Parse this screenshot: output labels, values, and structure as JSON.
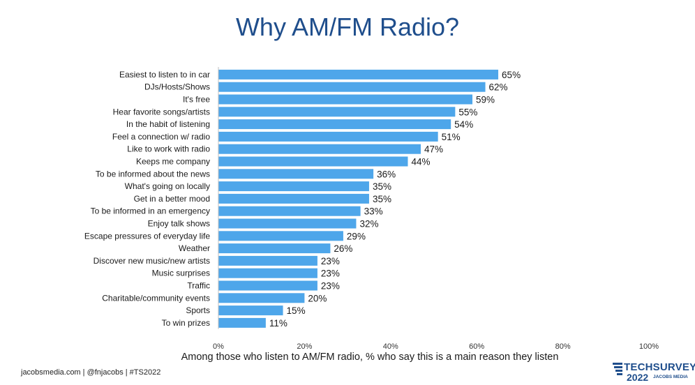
{
  "title": "Why AM/FM Radio?",
  "subtitle": "Among those who listen to AM/FM radio, % who say this is a main reason they listen",
  "footer": "jacobsmedia.com   |   @fnjacobs   |   #TS2022",
  "brand": {
    "main": "TECHSURVEY",
    "year": "2022",
    "sub": "JACOBS MEDIA"
  },
  "colors": {
    "bar": "#4ea6ea",
    "title": "#1f4e8c",
    "axis": "#bfbfbf"
  },
  "chart_data": {
    "type": "bar",
    "orientation": "horizontal",
    "categories": [
      "Easiest to listen to in car",
      "DJs/Hosts/Shows",
      "It's free",
      "Hear favorite songs/artists",
      "In the habit of listening",
      "Feel a connection w/ radio",
      "Like to work with radio",
      "Keeps me company",
      "To be informed about the news",
      "What's going on locally",
      "Get in a better mood",
      "To be informed in an emergency",
      "Enjoy talk shows",
      "Escape pressures of everyday life",
      "Weather",
      "Discover new music/new artists",
      "Music surprises",
      "Traffic",
      "Charitable/community events",
      "Sports",
      "To win prizes"
    ],
    "values": [
      65,
      62,
      59,
      55,
      54,
      51,
      47,
      44,
      36,
      35,
      35,
      33,
      32,
      29,
      26,
      23,
      23,
      23,
      20,
      15,
      11
    ],
    "value_labels": [
      "65%",
      "62%",
      "59%",
      "55%",
      "54%",
      "51%",
      "47%",
      "44%",
      "36%",
      "35%",
      "35%",
      "33%",
      "32%",
      "29%",
      "26%",
      "23%",
      "23%",
      "23%",
      "20%",
      "15%",
      "11%"
    ],
    "xlim": [
      0,
      100
    ],
    "xticks": [
      0,
      20,
      40,
      60,
      80,
      100
    ],
    "xtick_labels": [
      "0%",
      "20%",
      "40%",
      "60%",
      "80%",
      "100%"
    ],
    "grid": false
  }
}
